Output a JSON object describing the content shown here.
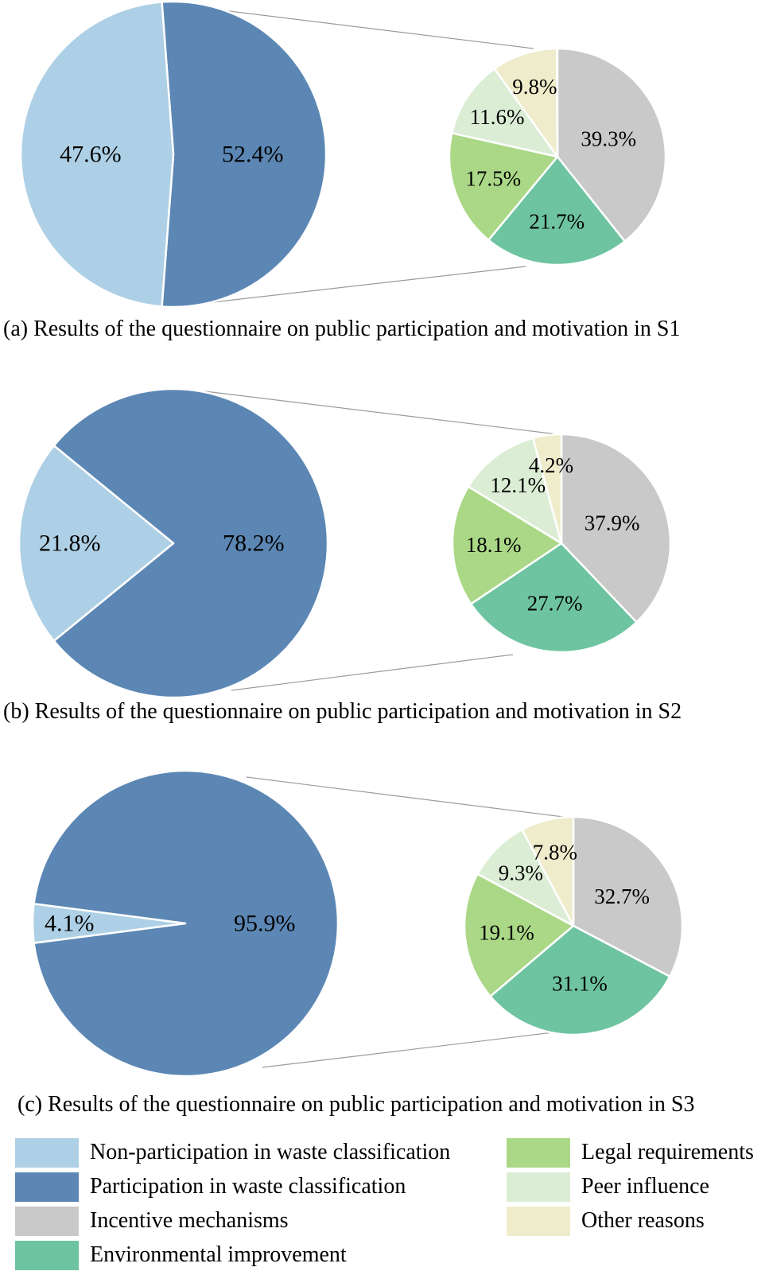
{
  "colors": {
    "non_participation": "#aed0e6",
    "participation": "#5c87b4",
    "incentive_mechanisms": "#c9c9c9",
    "environmental_improvement": "#6ec4a0",
    "legal_requirements": "#abd887",
    "peer_influence": "#dcedd5",
    "other_reasons": "#eeeccb",
    "label_text": "#000000",
    "connector_line": "#9b9b9b"
  },
  "chart_data": [
    {
      "panel": "a",
      "caption": "(a) Results of the questionnaire on public participation and motivation in S1",
      "participation_pie": {
        "type": "pie",
        "slices": [
          {
            "label": "Participation in waste classification",
            "color": "participation",
            "value": 52.4
          },
          {
            "label": "Non-participation in waste classification",
            "color": "non_participation",
            "value": 47.6
          }
        ]
      },
      "motivation_pie": {
        "type": "pie",
        "slices": [
          {
            "label": "Incentive mechanisms",
            "color": "incentive_mechanisms",
            "value": 39.3
          },
          {
            "label": "Environmental improvement",
            "color": "environmental_improvement",
            "value": 21.7
          },
          {
            "label": "Legal requirements",
            "color": "legal_requirements",
            "value": 17.5
          },
          {
            "label": "Peer influence",
            "color": "peer_influence",
            "value": 11.6
          },
          {
            "label": "Other reasons",
            "color": "other_reasons",
            "value": 9.8
          }
        ]
      }
    },
    {
      "panel": "b",
      "caption": "(b) Results of the questionnaire on public participation and motivation in S2",
      "participation_pie": {
        "type": "pie",
        "slices": [
          {
            "label": "Participation in waste classification",
            "color": "participation",
            "value": 78.2
          },
          {
            "label": "Non-participation in waste classification",
            "color": "non_participation",
            "value": 21.8
          }
        ]
      },
      "motivation_pie": {
        "type": "pie",
        "slices": [
          {
            "label": "Incentive mechanisms",
            "color": "incentive_mechanisms",
            "value": 37.9
          },
          {
            "label": "Environmental improvement",
            "color": "environmental_improvement",
            "value": 27.7
          },
          {
            "label": "Legal requirements",
            "color": "legal_requirements",
            "value": 18.1
          },
          {
            "label": "Peer influence",
            "color": "peer_influence",
            "value": 12.1
          },
          {
            "label": "Other reasons",
            "color": "other_reasons",
            "value": 4.2
          }
        ]
      }
    },
    {
      "panel": "c",
      "caption": "(c) Results of the questionnaire on public participation and motivation in S3",
      "participation_pie": {
        "type": "pie",
        "slices": [
          {
            "label": "Participation in waste classification",
            "color": "participation",
            "value": 95.9
          },
          {
            "label": "Non-participation in waste classification",
            "color": "non_participation",
            "value": 4.1
          }
        ]
      },
      "motivation_pie": {
        "type": "pie",
        "slices": [
          {
            "label": "Incentive mechanisms",
            "color": "incentive_mechanisms",
            "value": 32.7
          },
          {
            "label": "Environmental improvement",
            "color": "environmental_improvement",
            "value": 31.1
          },
          {
            "label": "Legal requirements",
            "color": "legal_requirements",
            "value": 19.1
          },
          {
            "label": "Peer influence",
            "color": "peer_influence",
            "value": 9.3
          },
          {
            "label": "Other reasons",
            "color": "other_reasons",
            "value": 7.8
          }
        ]
      }
    }
  ],
  "legend": {
    "position": "bottom",
    "items": [
      {
        "label": "Non-participation in waste classification",
        "color": "non_participation"
      },
      {
        "label": "Participation in waste classification",
        "color": "participation"
      },
      {
        "label": "Incentive mechanisms",
        "color": "incentive_mechanisms"
      },
      {
        "label": "Environmental improvement",
        "color": "environmental_improvement"
      },
      {
        "label": "Legal requirements",
        "color": "legal_requirements"
      },
      {
        "label": "Peer influence",
        "color": "peer_influence"
      },
      {
        "label": "Other reasons",
        "color": "other_reasons"
      }
    ]
  }
}
